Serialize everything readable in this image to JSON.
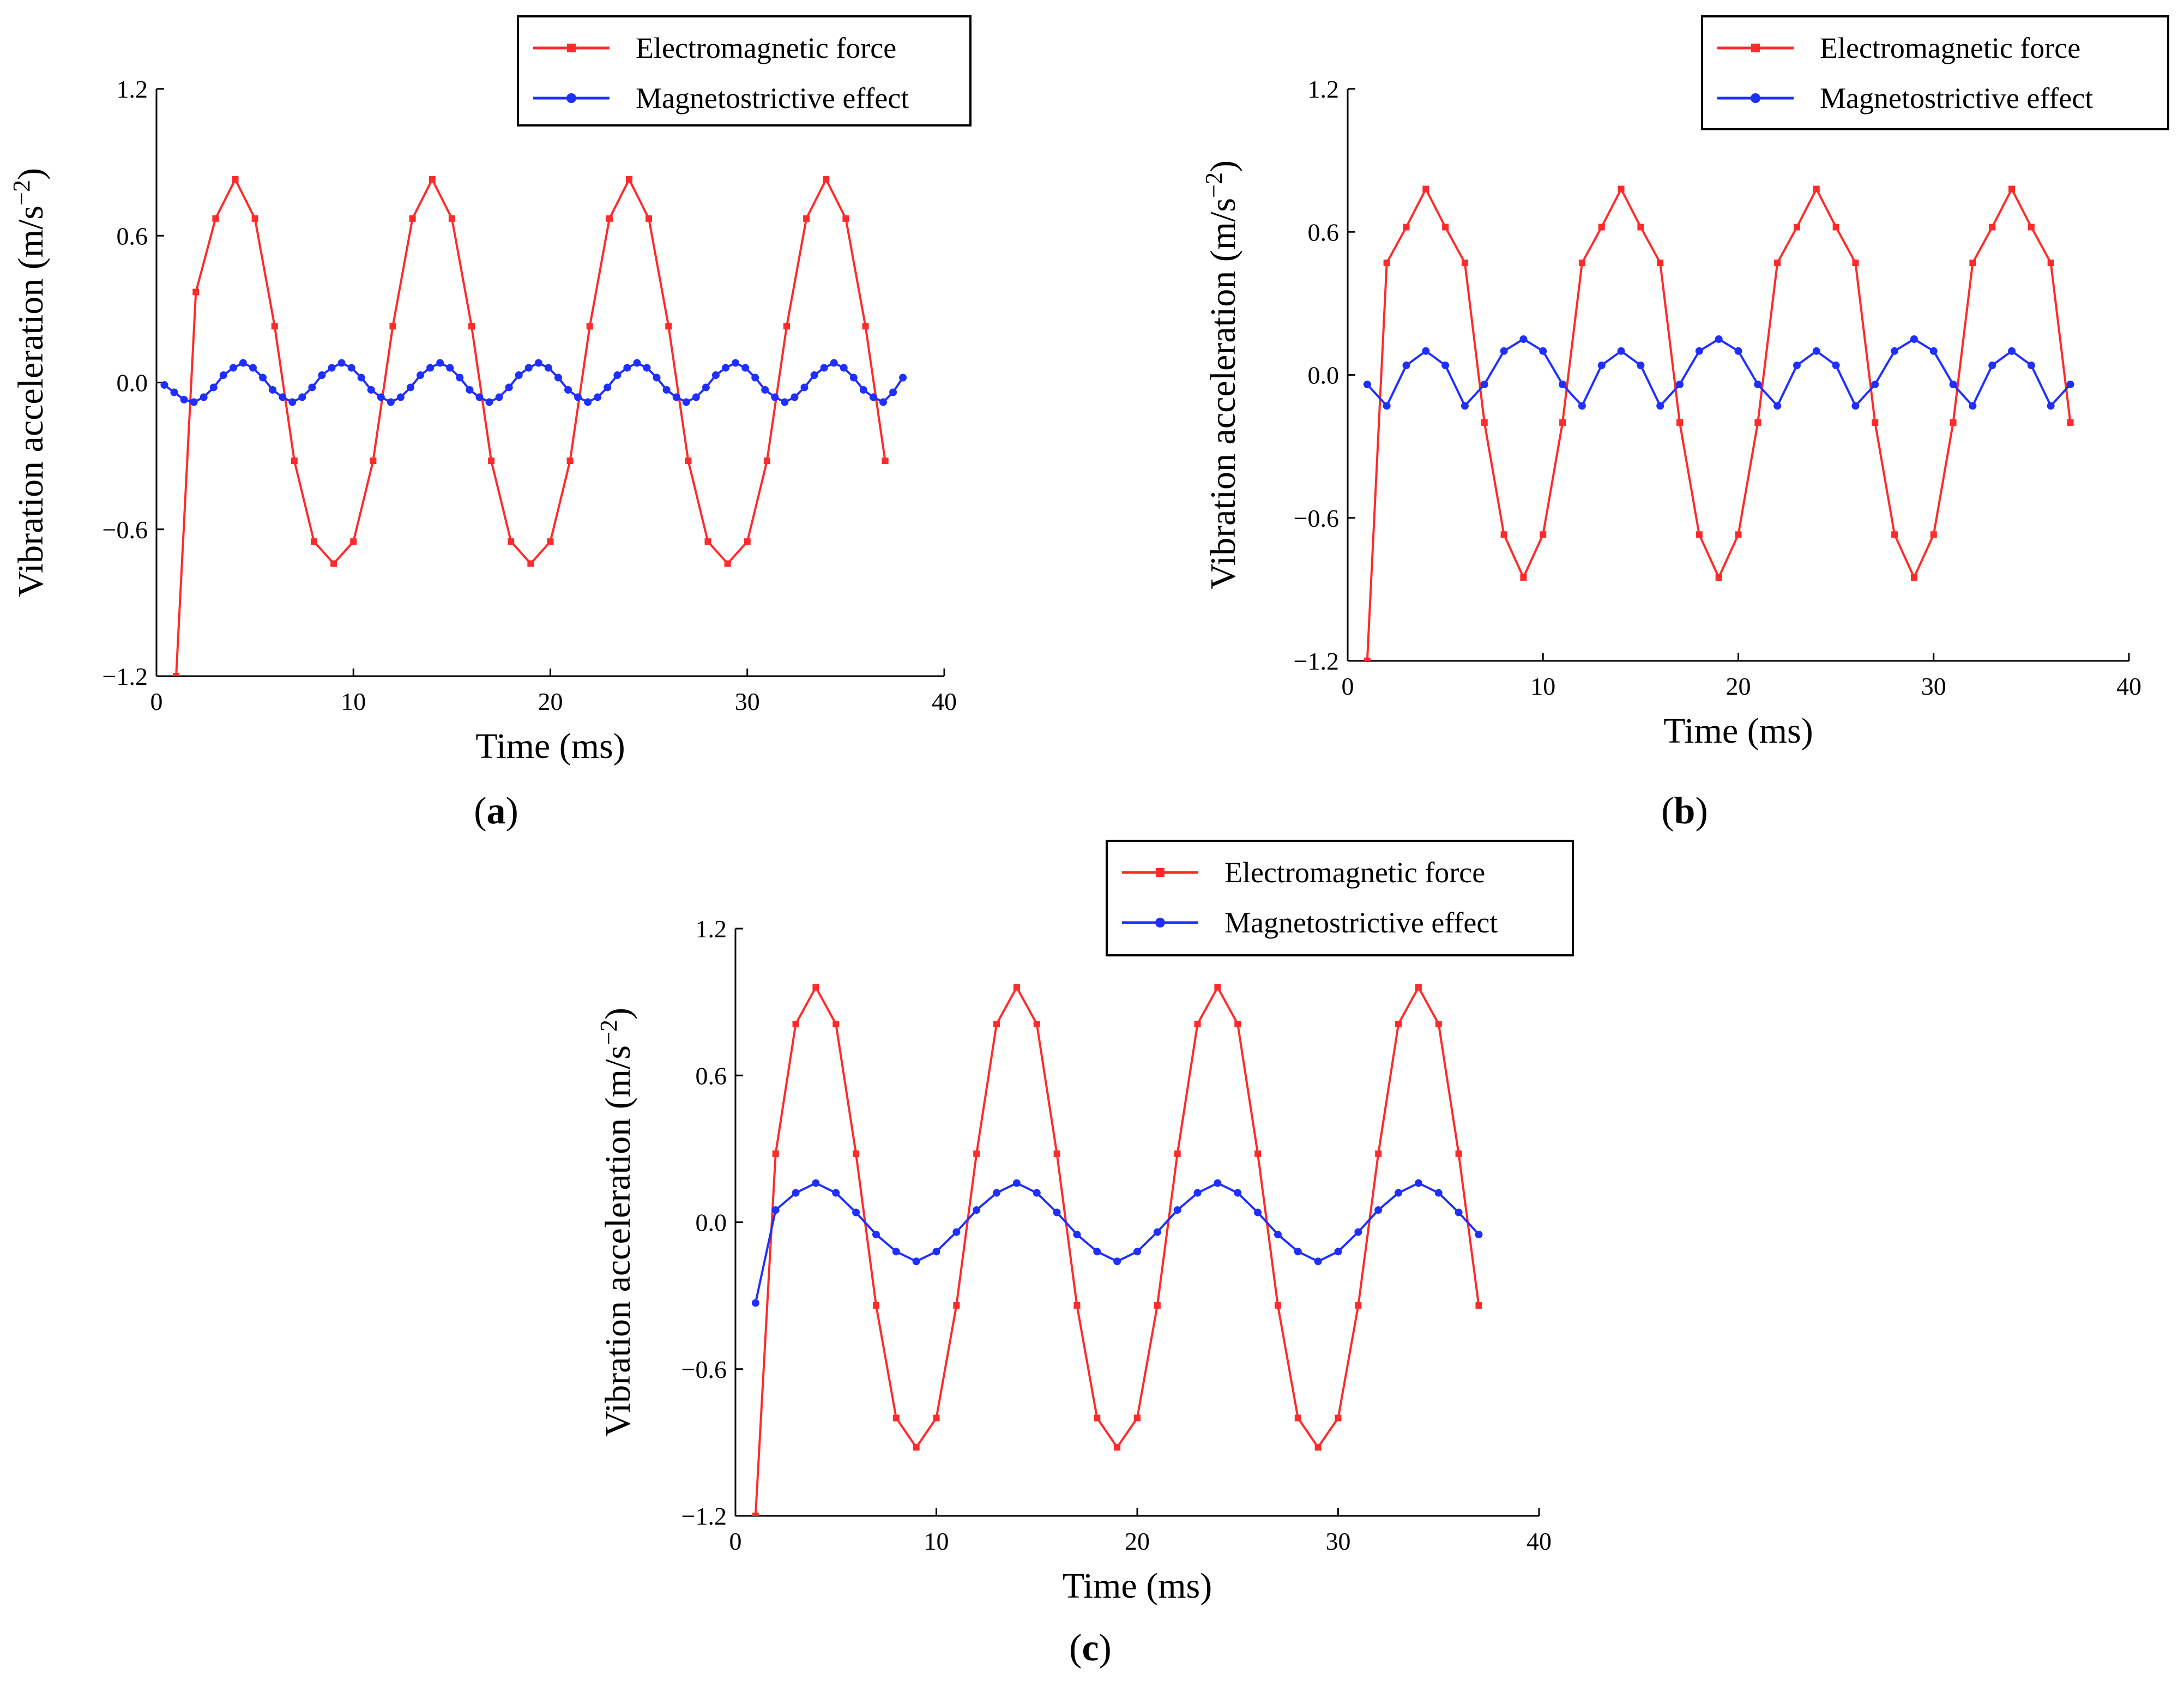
{
  "figure": {
    "panels": [
      {
        "id": "a",
        "caption_open": "(",
        "caption_letter": "a",
        "caption_close": ")"
      },
      {
        "id": "b",
        "caption_open": "(",
        "caption_letter": "b",
        "caption_close": ")"
      },
      {
        "id": "c",
        "caption_open": "(",
        "caption_letter": "c",
        "caption_close": ")"
      }
    ]
  },
  "chart_data": [
    {
      "id": "a",
      "type": "line",
      "xlabel": "Time (ms)",
      "ylabel": "Vibration acceleration (m/s",
      "ylabel_sup": "−2",
      "ylabel_end": ")",
      "xlim": [
        0,
        40
      ],
      "ylim": [
        -1.2,
        1.2
      ],
      "xticks": [
        0,
        10,
        20,
        30,
        40
      ],
      "xtick_labels": [
        "0",
        "10",
        "20",
        "30",
        "40"
      ],
      "yticks": [
        -1.2,
        -0.6,
        0.0,
        0.6,
        1.2
      ],
      "ytick_labels": [
        "−1.2",
        "−0.6",
        "0.0",
        "0.6",
        "1.2"
      ],
      "legend_position": "top-right",
      "grid": false,
      "series": [
        {
          "name": "Electromagnetic force",
          "color": "#ff2a2a",
          "marker": "square",
          "x": [
            1,
            2,
            3,
            4,
            5,
            6,
            7,
            8,
            9,
            10,
            11,
            12,
            13,
            14,
            15,
            16,
            17,
            18,
            19,
            20,
            21,
            22,
            23,
            24,
            25,
            26,
            27,
            28,
            29,
            30,
            31,
            32,
            33,
            34,
            35,
            36,
            37
          ],
          "y": [
            -1.2,
            0.37,
            0.67,
            0.83,
            0.67,
            0.23,
            -0.32,
            -0.65,
            -0.74,
            -0.65,
            -0.32,
            0.23,
            0.67,
            0.83,
            0.67,
            0.23,
            -0.32,
            -0.65,
            -0.74,
            -0.65,
            -0.32,
            0.23,
            0.67,
            0.83,
            0.67,
            0.23,
            -0.32,
            -0.65,
            -0.74,
            -0.65,
            -0.32,
            0.23,
            0.67,
            0.83,
            0.67,
            0.23,
            -0.32
          ]
        },
        {
          "name": "Magnetostrictive effect",
          "color": "#1f2fff",
          "marker": "circle",
          "x": [
            0.4,
            0.9,
            1.4,
            1.9,
            2.4,
            2.9,
            3.4,
            3.9,
            4.4,
            4.9,
            5.4,
            5.9,
            6.4,
            6.9,
            7.4,
            7.9,
            8.4,
            8.9,
            9.4,
            9.9,
            10.4,
            10.9,
            11.4,
            11.9,
            12.4,
            12.9,
            13.4,
            13.9,
            14.4,
            14.9,
            15.4,
            15.9,
            16.4,
            16.9,
            17.4,
            17.9,
            18.4,
            18.9,
            19.4,
            19.9,
            20.4,
            20.9,
            21.4,
            21.9,
            22.4,
            22.9,
            23.4,
            23.9,
            24.4,
            24.9,
            25.4,
            25.9,
            26.4,
            26.9,
            27.4,
            27.9,
            28.4,
            28.9,
            29.4,
            29.9,
            30.4,
            30.9,
            31.4,
            31.9,
            32.4,
            32.9,
            33.4,
            33.9,
            34.4,
            34.9,
            35.4,
            35.9,
            36.4,
            36.9,
            37.4,
            37.9
          ],
          "y": [
            -0.01,
            -0.04,
            -0.07,
            -0.08,
            -0.06,
            -0.02,
            0.03,
            0.06,
            0.08,
            0.06,
            0.02,
            -0.03,
            -0.06,
            -0.08,
            -0.06,
            -0.02,
            0.03,
            0.06,
            0.08,
            0.06,
            0.02,
            -0.03,
            -0.06,
            -0.08,
            -0.06,
            -0.02,
            0.03,
            0.06,
            0.08,
            0.06,
            0.02,
            -0.03,
            -0.06,
            -0.08,
            -0.06,
            -0.02,
            0.03,
            0.06,
            0.08,
            0.06,
            0.02,
            -0.03,
            -0.06,
            -0.08,
            -0.06,
            -0.02,
            0.03,
            0.06,
            0.08,
            0.06,
            0.02,
            -0.03,
            -0.06,
            -0.08,
            -0.06,
            -0.02,
            0.03,
            0.06,
            0.08,
            0.06,
            0.02,
            -0.03,
            -0.06,
            -0.08,
            -0.06,
            -0.02,
            0.03,
            0.06,
            0.08,
            0.06,
            0.02,
            -0.03,
            -0.06,
            -0.08,
            -0.04,
            0.02
          ]
        }
      ]
    },
    {
      "id": "b",
      "type": "line",
      "xlabel": "Time (ms)",
      "ylabel": "Vibration acceleration (m/s",
      "ylabel_sup": "−2",
      "ylabel_end": ")",
      "xlim": [
        0,
        40
      ],
      "ylim": [
        -1.2,
        1.2
      ],
      "xticks": [
        0,
        10,
        20,
        30,
        40
      ],
      "xtick_labels": [
        "0",
        "10",
        "20",
        "30",
        "40"
      ],
      "yticks": [
        -1.2,
        -0.6,
        0.0,
        0.6,
        1.2
      ],
      "ytick_labels": [
        "−1.2",
        "−0.6",
        "0.0",
        "0.6",
        "1.2"
      ],
      "legend_position": "top-right",
      "grid": false,
      "series": [
        {
          "name": "Electromagnetic force",
          "color": "#ff2a2a",
          "marker": "square",
          "x": [
            1,
            2,
            3,
            4,
            5,
            6,
            7,
            8,
            9,
            10,
            11,
            12,
            13,
            14,
            15,
            16,
            17,
            18,
            19,
            20,
            21,
            22,
            23,
            24,
            25,
            26,
            27,
            28,
            29,
            30,
            31,
            32,
            33,
            34,
            35,
            36,
            37
          ],
          "y": [
            -1.2,
            0.47,
            0.62,
            0.78,
            0.62,
            0.47,
            -0.2,
            -0.67,
            -0.85,
            -0.67,
            -0.2,
            0.47,
            0.62,
            0.78,
            0.62,
            0.47,
            -0.2,
            -0.67,
            -0.85,
            -0.67,
            -0.2,
            0.47,
            0.62,
            0.78,
            0.62,
            0.47,
            -0.2,
            -0.67,
            -0.85,
            -0.67,
            -0.2,
            0.47,
            0.62,
            0.78,
            0.62,
            0.47,
            -0.2
          ]
        },
        {
          "name": "Magnetostrictive effect",
          "color": "#1f2fff",
          "marker": "circle",
          "x": [
            1,
            2,
            3,
            4,
            5,
            6,
            7,
            8,
            9,
            10,
            11,
            12,
            13,
            14,
            15,
            16,
            17,
            18,
            19,
            20,
            21,
            22,
            23,
            24,
            25,
            26,
            27,
            28,
            29,
            30,
            31,
            32,
            33,
            34,
            35,
            36,
            37
          ],
          "y": [
            -0.04,
            -0.13,
            0.04,
            0.1,
            0.04,
            -0.13,
            -0.04,
            0.1,
            0.15,
            0.1,
            -0.04,
            -0.13,
            0.04,
            0.1,
            0.04,
            -0.13,
            -0.04,
            0.1,
            0.15,
            0.1,
            -0.04,
            -0.13,
            0.04,
            0.1,
            0.04,
            -0.13,
            -0.04,
            0.1,
            0.15,
            0.1,
            -0.04,
            -0.13,
            0.04,
            0.1,
            0.04,
            -0.13,
            -0.04
          ]
        }
      ]
    },
    {
      "id": "c",
      "type": "line",
      "xlabel": "Time (ms)",
      "ylabel": "Vibration acceleration (m/s",
      "ylabel_sup": "−2",
      "ylabel_end": ")",
      "xlim": [
        0,
        40
      ],
      "ylim": [
        -1.2,
        1.2
      ],
      "xticks": [
        0,
        10,
        20,
        30,
        40
      ],
      "xtick_labels": [
        "0",
        "10",
        "20",
        "30",
        "40"
      ],
      "yticks": [
        -1.2,
        -0.6,
        0.0,
        0.6,
        1.2
      ],
      "ytick_labels": [
        "−1.2",
        "−0.6",
        "0.0",
        "0.6",
        "1.2"
      ],
      "legend_position": "top-right",
      "grid": false,
      "series": [
        {
          "name": "Electromagnetic force",
          "color": "#ff2a2a",
          "marker": "square",
          "x": [
            1,
            2,
            3,
            4,
            5,
            6,
            7,
            8,
            9,
            10,
            11,
            12,
            13,
            14,
            15,
            16,
            17,
            18,
            19,
            20,
            21,
            22,
            23,
            24,
            25,
            26,
            27,
            28,
            29,
            30,
            31,
            32,
            33,
            34,
            35,
            36,
            37
          ],
          "y": [
            -1.2,
            0.28,
            0.81,
            0.96,
            0.81,
            0.28,
            -0.34,
            -0.8,
            -0.92,
            -0.8,
            -0.34,
            0.28,
            0.81,
            0.96,
            0.81,
            0.28,
            -0.34,
            -0.8,
            -0.92,
            -0.8,
            -0.34,
            0.28,
            0.81,
            0.96,
            0.81,
            0.28,
            -0.34,
            -0.8,
            -0.92,
            -0.8,
            -0.34,
            0.28,
            0.81,
            0.96,
            0.81,
            0.28,
            -0.34
          ]
        },
        {
          "name": "Magnetostrictive effect",
          "color": "#1f2fff",
          "marker": "circle",
          "x": [
            1,
            2,
            3,
            4,
            5,
            6,
            7,
            8,
            9,
            10,
            11,
            12,
            13,
            14,
            15,
            16,
            17,
            18,
            19,
            20,
            21,
            22,
            23,
            24,
            25,
            26,
            27,
            28,
            29,
            30,
            31,
            32,
            33,
            34,
            35,
            36,
            37
          ],
          "y": [
            -0.33,
            0.05,
            0.12,
            0.16,
            0.12,
            0.04,
            -0.05,
            -0.12,
            -0.16,
            -0.12,
            -0.04,
            0.05,
            0.12,
            0.16,
            0.12,
            0.04,
            -0.05,
            -0.12,
            -0.16,
            -0.12,
            -0.04,
            0.05,
            0.12,
            0.16,
            0.12,
            0.04,
            -0.05,
            -0.12,
            -0.16,
            -0.12,
            -0.04,
            0.05,
            0.12,
            0.16,
            0.12,
            0.04,
            -0.05
          ]
        }
      ]
    }
  ]
}
